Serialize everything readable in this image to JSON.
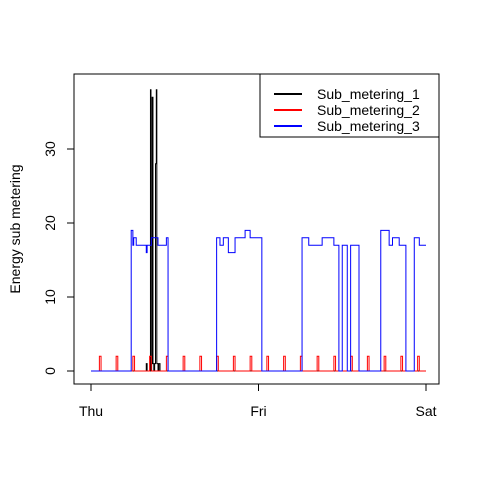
{
  "chart_data": {
    "type": "line",
    "title": "",
    "xlabel": "",
    "ylabel": "Energy sub metering",
    "xlim": [
      0,
      2
    ],
    "ylim": [
      0,
      38
    ],
    "x_ticks": [
      {
        "value": 0,
        "label": "Thu"
      },
      {
        "value": 1,
        "label": "Fri"
      },
      {
        "value": 2,
        "label": "Sat"
      }
    ],
    "y_ticks": [
      0,
      10,
      20,
      30
    ],
    "legend_position": "top-right",
    "series": [
      {
        "name": "Sub_metering_1",
        "color": "#000000",
        "x": [
          0,
          0.33,
          0.33,
          0.335,
          0.335,
          0.355,
          0.355,
          0.358,
          0.358,
          0.362,
          0.362,
          0.365,
          0.365,
          0.37,
          0.37,
          0.375,
          0.375,
          0.38,
          0.38,
          0.385,
          0.385,
          0.39,
          0.39,
          0.393,
          0.393,
          0.4,
          0.4,
          0.405,
          0.405,
          0.412,
          0.412,
          2
        ],
        "y": [
          0,
          0,
          1,
          1,
          0,
          0,
          38,
          38,
          0,
          0,
          1,
          1,
          37,
          37,
          1,
          1,
          0,
          0,
          1,
          1,
          28,
          28,
          38,
          38,
          1,
          1,
          0,
          0,
          1,
          1,
          0,
          0
        ]
      },
      {
        "name": "Sub_metering_2",
        "color": "#ff0000",
        "x": [
          0,
          0.05,
          0.05,
          0.06,
          0.06,
          0.15,
          0.15,
          0.16,
          0.16,
          0.25,
          0.25,
          0.26,
          0.26,
          0.35,
          0.35,
          0.36,
          0.36,
          0.45,
          0.45,
          0.46,
          0.46,
          0.55,
          0.55,
          0.56,
          0.56,
          0.65,
          0.65,
          0.66,
          0.66,
          0.75,
          0.75,
          0.76,
          0.76,
          0.85,
          0.85,
          0.86,
          0.86,
          0.95,
          0.95,
          0.96,
          0.96,
          1.05,
          1.05,
          1.06,
          1.06,
          1.15,
          1.15,
          1.16,
          1.16,
          1.25,
          1.25,
          1.26,
          1.26,
          1.35,
          1.35,
          1.36,
          1.36,
          1.45,
          1.45,
          1.46,
          1.46,
          1.55,
          1.55,
          1.56,
          1.56,
          1.65,
          1.65,
          1.66,
          1.66,
          1.75,
          1.75,
          1.76,
          1.76,
          1.85,
          1.85,
          1.86,
          1.86,
          1.95,
          1.95,
          1.96,
          1.96,
          2
        ],
        "y": [
          0,
          0,
          2,
          2,
          0,
          0,
          2,
          2,
          0,
          0,
          2,
          2,
          0,
          0,
          2,
          2,
          0,
          0,
          2,
          2,
          0,
          0,
          2,
          2,
          0,
          0,
          2,
          2,
          0,
          0,
          2,
          2,
          0,
          0,
          2,
          2,
          0,
          0,
          2,
          2,
          0,
          0,
          2,
          2,
          0,
          0,
          2,
          2,
          0,
          0,
          2,
          2,
          0,
          0,
          2,
          2,
          0,
          0,
          2,
          2,
          0,
          0,
          2,
          2,
          0,
          0,
          2,
          2,
          0,
          0,
          2,
          2,
          0,
          0,
          2,
          2,
          0,
          0,
          2,
          2,
          0,
          0
        ]
      },
      {
        "name": "Sub_metering_3",
        "color": "#0000ff",
        "x": [
          0,
          0.24,
          0.24,
          0.25,
          0.25,
          0.255,
          0.255,
          0.27,
          0.27,
          0.33,
          0.33,
          0.335,
          0.335,
          0.36,
          0.36,
          0.4,
          0.4,
          0.45,
          0.45,
          0.46,
          0.46,
          0.75,
          0.75,
          0.77,
          0.77,
          0.79,
          0.79,
          0.82,
          0.82,
          0.86,
          0.86,
          0.92,
          0.92,
          0.95,
          0.95,
          0.96,
          0.96,
          1.02,
          1.02,
          1.26,
          1.26,
          1.3,
          1.3,
          1.38,
          1.38,
          1.45,
          1.45,
          1.48,
          1.48,
          1.5,
          1.5,
          1.53,
          1.53,
          1.55,
          1.55,
          1.6,
          1.6,
          1.67,
          1.67,
          1.73,
          1.73,
          1.78,
          1.78,
          1.8,
          1.8,
          1.84,
          1.84,
          1.88,
          1.88,
          1.93,
          1.93,
          1.96,
          1.96,
          2
        ],
        "y": [
          0,
          0,
          19,
          19,
          17,
          17,
          18,
          18,
          17,
          17,
          16,
          16,
          17,
          17,
          18,
          18,
          17,
          17,
          18,
          18,
          0,
          0,
          18,
          18,
          17,
          17,
          18,
          18,
          16,
          16,
          18,
          18,
          19,
          19,
          18,
          18,
          18,
          18,
          0,
          0,
          18,
          18,
          17,
          17,
          18,
          18,
          17,
          17,
          0,
          0,
          17,
          17,
          0,
          0,
          17,
          17,
          0,
          0,
          0,
          0,
          19,
          19,
          17,
          17,
          18,
          18,
          17,
          17,
          0,
          0,
          18,
          18,
          17,
          17
        ]
      }
    ]
  }
}
